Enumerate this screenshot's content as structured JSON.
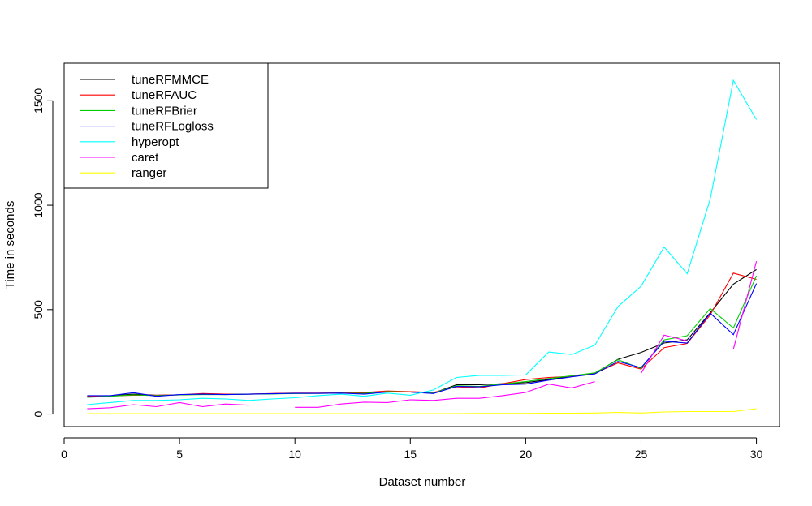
{
  "chart_data": {
    "type": "line",
    "title": "",
    "xlabel": "Dataset number",
    "ylabel": "Time in seconds",
    "xlim": [
      0,
      31
    ],
    "ylim": [
      -60,
      1680
    ],
    "x_ticks": [
      0,
      5,
      10,
      15,
      20,
      25,
      30
    ],
    "y_ticks": [
      0,
      500,
      1000,
      1500
    ],
    "grid": false,
    "legend_position": "top-left",
    "x": [
      1,
      2,
      3,
      4,
      5,
      6,
      7,
      8,
      9,
      10,
      11,
      12,
      13,
      14,
      15,
      16,
      17,
      18,
      19,
      20,
      21,
      22,
      23,
      24,
      25,
      26,
      27,
      28,
      29,
      30
    ],
    "series": [
      {
        "name": "tuneRFMMCE",
        "color": "#000000",
        "values": [
          85,
          87,
          95,
          90,
          92,
          95,
          94,
          95,
          97,
          99,
          99,
          100,
          102,
          107,
          105,
          100,
          140,
          140,
          145,
          150,
          165,
          180,
          195,
          262,
          295,
          340,
          355,
          485,
          622,
          692
        ]
      },
      {
        "name": "tuneRFAUC",
        "color": "#ff0000",
        "values": [
          85,
          87,
          90,
          90,
          92,
          98,
          95,
          95,
          98,
          100,
          100,
          101,
          103,
          110,
          107,
          103,
          130,
          125,
          145,
          165,
          175,
          180,
          195,
          245,
          215,
          318,
          338,
          475,
          675,
          645
        ]
      },
      {
        "name": "tuneRFBrier",
        "color": "#00cd00",
        "values": [
          80,
          85,
          92,
          88,
          92,
          93,
          93,
          95,
          96,
          98,
          99,
          100,
          98,
          107,
          105,
          100,
          135,
          132,
          143,
          155,
          170,
          183,
          197,
          260,
          218,
          355,
          375,
          505,
          412,
          662
        ]
      },
      {
        "name": "tuneRFLogloss",
        "color": "#0000ff",
        "values": [
          88,
          88,
          102,
          85,
          93,
          95,
          93,
          95,
          97,
          99,
          99,
          100,
          95,
          105,
          105,
          98,
          132,
          130,
          140,
          143,
          162,
          178,
          192,
          252,
          222,
          348,
          340,
          483,
          380,
          625
        ]
      },
      {
        "name": "hyperopt",
        "color": "#00ffff",
        "values": [
          45,
          55,
          65,
          65,
          68,
          75,
          72,
          65,
          72,
          78,
          88,
          95,
          85,
          100,
          90,
          115,
          175,
          185,
          185,
          187,
          297,
          285,
          330,
          515,
          612,
          800,
          672,
          1030,
          1598,
          1410
        ]
      },
      {
        "name": "caret",
        "color": "#ff00ff",
        "values": [
          25,
          30,
          45,
          35,
          55,
          35,
          48,
          42,
          null,
          32,
          32,
          48,
          57,
          55,
          68,
          65,
          75,
          75,
          88,
          103,
          143,
          125,
          155,
          null,
          195,
          378,
          350,
          null,
          310,
          732
        ]
      },
      {
        "name": "ranger",
        "color": "#ffff00",
        "values": [
          2,
          2,
          2,
          2,
          2,
          2,
          2,
          2,
          2,
          2,
          2,
          2,
          2,
          2,
          2,
          2,
          2,
          3,
          3,
          3,
          4,
          4,
          5,
          8,
          5,
          10,
          12,
          12,
          12,
          25
        ]
      }
    ]
  }
}
